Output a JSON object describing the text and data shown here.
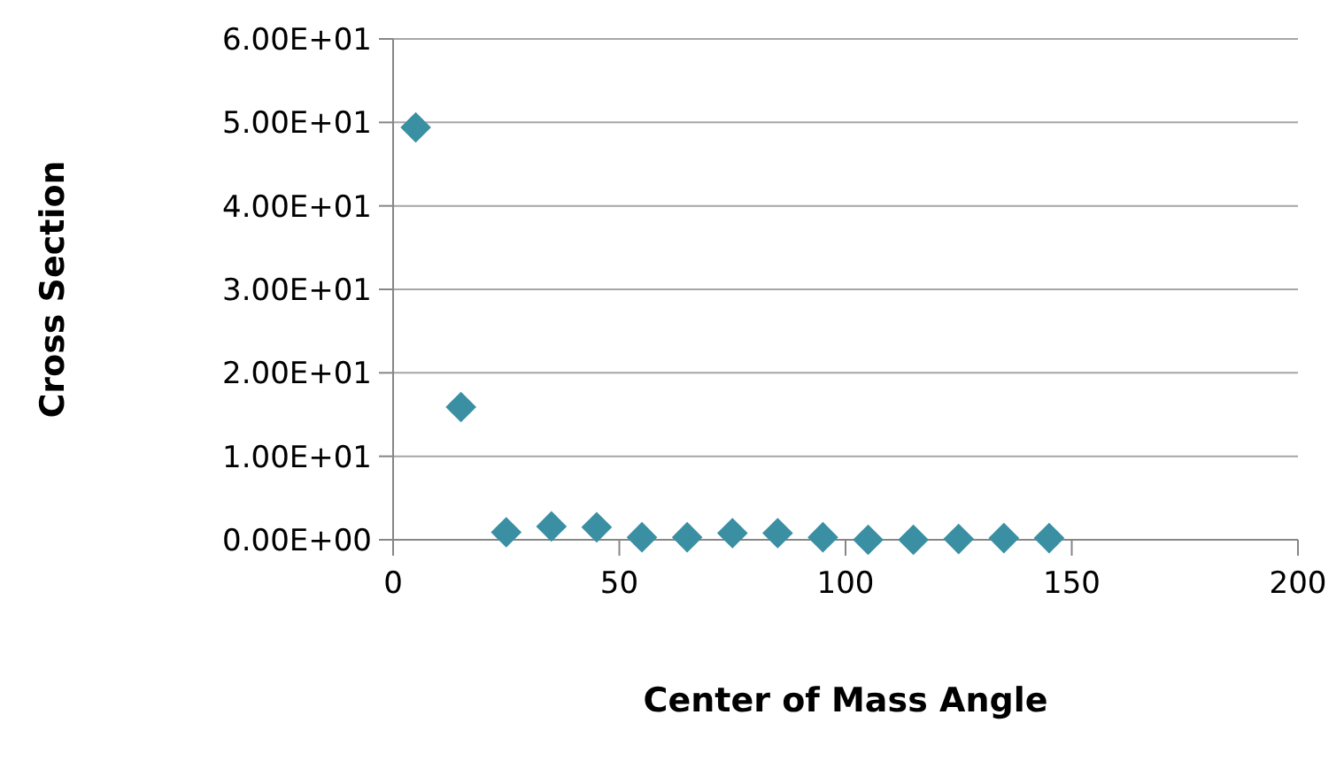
{
  "chart_data": {
    "type": "scatter",
    "xlabel": "Center of Mass Angle",
    "ylabel": "Cross Section",
    "x": [
      5,
      15,
      25,
      35,
      45,
      55,
      65,
      75,
      85,
      95,
      105,
      115,
      125,
      135,
      145
    ],
    "series": [
      {
        "color": "#3a8fa3",
        "values": [
          49.4,
          15.9,
          0.9,
          1.6,
          1.5,
          0.3,
          0.3,
          0.8,
          0.8,
          0.3,
          0,
          0,
          0.1,
          0.2,
          0.2
        ]
      }
    ],
    "xlim": [
      0,
      200
    ],
    "xticks": [
      0,
      50,
      100,
      150,
      200
    ],
    "ylim": [
      0,
      60
    ],
    "yticks": [
      {
        "value": 0,
        "label": "0.00E+00"
      },
      {
        "value": 10,
        "label": "1.00E+01"
      },
      {
        "value": 20,
        "label": "2.00E+01"
      },
      {
        "value": 30,
        "label": "3.00E+01"
      },
      {
        "value": 40,
        "label": "4.00E+01"
      },
      {
        "value": 50,
        "label": "5.00E+01"
      },
      {
        "value": 60,
        "label": "6.00E+01"
      }
    ],
    "grid": "y",
    "marker": "diamond"
  }
}
